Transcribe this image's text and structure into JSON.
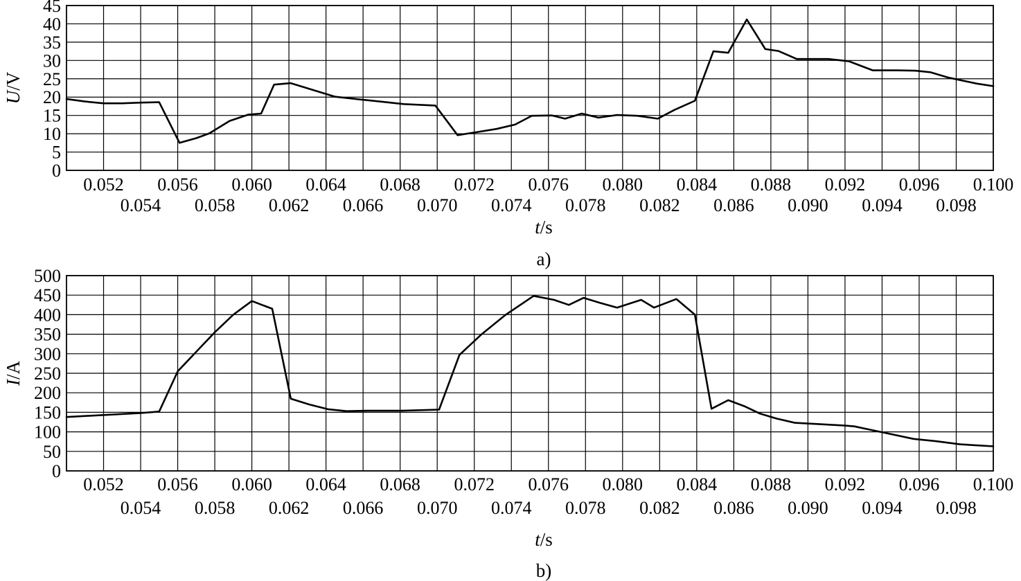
{
  "chart_data": [
    {
      "type": "line",
      "caption": "a)",
      "xlabel_var": "t",
      "xlabel_unit": "/s",
      "ylabel_var": "U",
      "ylabel_unit": "/V",
      "xlim": [
        0.05,
        0.1
      ],
      "ylim": [
        0,
        45
      ],
      "grid": true,
      "x_ticks": [
        "0.052",
        "0.054",
        "0.056",
        "0.058",
        "0.060",
        "0.062",
        "0.064",
        "0.066",
        "0.068",
        "0.070",
        "0.072",
        "0.074",
        "0.076",
        "0.078",
        "0.080",
        "0.082",
        "0.084",
        "0.086",
        "0.088",
        "0.090",
        "0.092",
        "0.094",
        "0.096",
        "0.098",
        "0.100"
      ],
      "y_ticks": [
        "0",
        "5",
        "10",
        "15",
        "20",
        "25",
        "30",
        "35",
        "40",
        "45"
      ],
      "series": [
        {
          "x": [
            0.05,
            0.051,
            0.052,
            0.053,
            0.054,
            0.055,
            0.0561,
            0.057,
            0.0577,
            0.0588,
            0.0598,
            0.0605,
            0.0612,
            0.0621,
            0.0632,
            0.0645,
            0.0656,
            0.0669,
            0.0682,
            0.0699,
            0.0711,
            0.0722,
            0.0732,
            0.0742,
            0.0751,
            0.0762,
            0.0769,
            0.0778,
            0.0787,
            0.0797,
            0.0808,
            0.0819,
            0.0828,
            0.0839,
            0.0849,
            0.0857,
            0.0867,
            0.0877,
            0.0884,
            0.0894,
            0.0911,
            0.0922,
            0.0935,
            0.0942,
            0.0948,
            0.0958,
            0.0966,
            0.0976,
            0.0991,
            0.1
          ],
          "y": [
            19.5,
            18.8,
            18.3,
            18.3,
            18.5,
            18.6,
            7.5,
            8.8,
            10.1,
            13.5,
            15.2,
            15.5,
            23.4,
            23.8,
            22.1,
            20.1,
            19.5,
            18.8,
            18.1,
            17.7,
            9.6,
            10.5,
            11.3,
            12.5,
            14.9,
            15,
            14.1,
            15.5,
            14.4,
            15.1,
            14.9,
            14.1,
            16.5,
            19,
            32.5,
            32.1,
            41.2,
            33.1,
            32.6,
            30.4,
            30.4,
            29.8,
            27.3,
            27.3,
            27.3,
            27.2,
            26.8,
            25.3,
            23.7,
            23
          ]
        }
      ]
    },
    {
      "type": "line",
      "caption": "b)",
      "xlabel_var": "t",
      "xlabel_unit": "/s",
      "ylabel_var": "I",
      "ylabel_unit": "/A",
      "xlim": [
        0.05,
        0.1
      ],
      "ylim": [
        0,
        500
      ],
      "grid": true,
      "x_ticks": [
        "0.052",
        "0.054",
        "0.056",
        "0.058",
        "0.060",
        "0.062",
        "0.064",
        "0.066",
        "0.068",
        "0.070",
        "0.072",
        "0.074",
        "0.076",
        "0.078",
        "0.080",
        "0.082",
        "0.084",
        "0.086",
        "0.088",
        "0.090",
        "0.092",
        "0.094",
        "0.096",
        "0.098",
        "0.100"
      ],
      "y_ticks": [
        "0",
        "50",
        "100",
        "150",
        "200",
        "250",
        "300",
        "350",
        "400",
        "450",
        "500"
      ],
      "series": [
        {
          "x": [
            0.05,
            0.052,
            0.054,
            0.055,
            0.056,
            0.057,
            0.058,
            0.059,
            0.06,
            0.0611,
            0.0621,
            0.0631,
            0.0641,
            0.0651,
            0.0662,
            0.0681,
            0.0701,
            0.0712,
            0.0724,
            0.0737,
            0.0752,
            0.0763,
            0.0771,
            0.0779,
            0.0788,
            0.0797,
            0.081,
            0.0817,
            0.0829,
            0.0839,
            0.0848,
            0.0857,
            0.0866,
            0.0874,
            0.0883,
            0.0893,
            0.0905,
            0.092,
            0.0925,
            0.0937,
            0.0947,
            0.0957,
            0.0969,
            0.0982,
            0.1
          ],
          "y": [
            138,
            143,
            148,
            152,
            255,
            305,
            355,
            400,
            435,
            415,
            185,
            170,
            158,
            153,
            154,
            154,
            157,
            297,
            350,
            400,
            448,
            438,
            425,
            443,
            430,
            418,
            438,
            418,
            440,
            400,
            159,
            181,
            165,
            147,
            134,
            123,
            120,
            116,
            114,
            102,
            92,
            82,
            76,
            68,
            63
          ]
        }
      ]
    }
  ]
}
